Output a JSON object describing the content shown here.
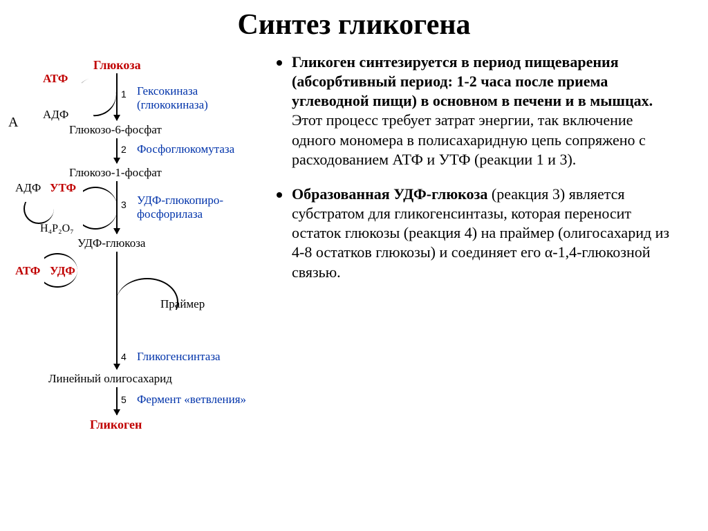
{
  "title": "Синтез гликогена",
  "title_fontsize": 42,
  "bullets": [
    {
      "html": "<b>Гликоген синтезируется в период пищеварения (абсорбтивный период: 1-2 часа после приема углеводной пищи) в основном в печени и в мышцах.</b> Этот процесс требует затрат энергии, так включение одного мономера в полисахаридную цепь сопряжено с расходованием АТФ и УТФ (реакции 1 и 3)."
    },
    {
      "html": "<b>Образованная УДФ-глюкоза</b> (реакция 3) является субстратом для гликогенсинтазы, которая переносит остаток глюкозы (реакция 4) на праймер (олигосахарид из 4-8 остатков глюкозы) и соединяет его &#945;-1,4-глюкозной связью."
    }
  ],
  "bullet_fontsize": 22,
  "diagram": {
    "label_fontsize": 16,
    "small_fontsize": 14,
    "metabolites": {
      "glucose": "Глюкоза",
      "atp1": "АТФ",
      "adp1": "АДФ",
      "g6p": "Глюкозо-6-фосфат",
      "g1p": "Глюкозо-1-фосфат",
      "adp2": "АДФ",
      "utp": "УТФ",
      "h4p2o7": "Н₄Р₂О₇",
      "udpglucose": "УДФ-глюкоза",
      "atp2": "АТФ",
      "udp": "УДФ",
      "primer": "Праймер",
      "linear": "Линейный олигосахарид",
      "glycogen": "Гликоген",
      "A": "А"
    },
    "enzymes": {
      "e1": "Гексокиназа",
      "e1b": "(глюкокиназа)",
      "e2": "Фосфоглюкомутаза",
      "e3a": "УДФ-глюкопиро-",
      "e3b": "фосфорилаза",
      "e4": "Гликогенсинтаза",
      "e5": "Фермент «ветвления»"
    },
    "steps": [
      "1",
      "2",
      "3",
      "4",
      "5"
    ],
    "colors": {
      "red": "#c00000",
      "blue": "#0033aa",
      "black": "#000000"
    }
  }
}
